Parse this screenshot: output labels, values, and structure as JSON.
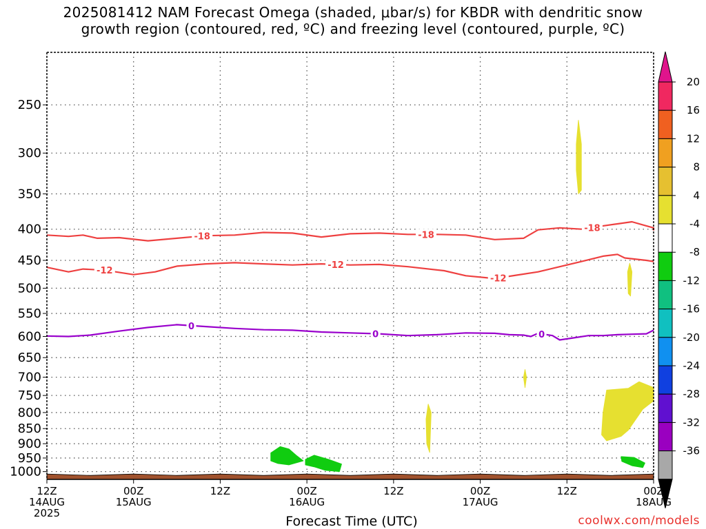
{
  "title": {
    "line1": "2025081412 NAM Forecast Omega (shaded, μbar/s) for KBDR with dendritic snow",
    "line2": "growth region (contoured, red, ºC) and freezing level (contoured, purple, ºC)"
  },
  "xlabel": "Forecast Time (UTC)",
  "credit": "coolwx.com/models",
  "colors": {
    "temp_contour": "#ee4040",
    "freezing_contour": "#9900cc",
    "ground": "#a0522d",
    "grid": "#555555"
  },
  "chart_data": {
    "type": "time-height",
    "y_scale": "log-pressure",
    "ylim": [
      1030,
      205
    ],
    "y_ticks": [
      250,
      300,
      350,
      400,
      450,
      500,
      550,
      600,
      650,
      700,
      750,
      800,
      850,
      900,
      950,
      1000
    ],
    "x_range_hours": [
      0,
      84
    ],
    "x_ticks": [
      {
        "h": 0,
        "label": "12Z",
        "date": "14AUG",
        "year": "2025"
      },
      {
        "h": 12,
        "label": "00Z",
        "date": "15AUG",
        "year": ""
      },
      {
        "h": 24,
        "label": "12Z",
        "date": "",
        "year": ""
      },
      {
        "h": 36,
        "label": "00Z",
        "date": "16AUG",
        "year": ""
      },
      {
        "h": 48,
        "label": "12Z",
        "date": "",
        "year": ""
      },
      {
        "h": 60,
        "label": "00Z",
        "date": "17AUG",
        "year": ""
      },
      {
        "h": 72,
        "label": "12Z",
        "date": "",
        "year": ""
      },
      {
        "h": 84,
        "label": "00Z",
        "date": "18AUG",
        "year": ""
      }
    ],
    "contours": [
      {
        "label": "-18",
        "color": "#ee4040",
        "label_at": [
          21.5,
          52.5,
          75.5
        ],
        "points": [
          [
            0,
            409
          ],
          [
            3,
            411
          ],
          [
            5,
            409
          ],
          [
            7,
            414
          ],
          [
            10,
            413
          ],
          [
            14,
            418
          ],
          [
            18,
            414
          ],
          [
            22,
            410
          ],
          [
            26,
            409
          ],
          [
            30,
            405
          ],
          [
            34,
            406
          ],
          [
            38,
            412
          ],
          [
            42,
            407
          ],
          [
            46,
            406
          ],
          [
            50,
            408
          ],
          [
            54,
            408
          ],
          [
            58,
            409
          ],
          [
            62,
            416
          ],
          [
            66,
            414
          ],
          [
            68,
            401
          ],
          [
            71,
            398
          ],
          [
            74,
            400
          ],
          [
            77,
            395
          ],
          [
            79,
            392
          ],
          [
            81,
            389
          ],
          [
            83,
            395
          ],
          [
            84,
            398
          ],
          [
            84,
            402
          ]
        ]
      },
      {
        "label": "-12",
        "color": "#ee4040",
        "label_at": [
          8,
          40,
          62.5
        ],
        "points": [
          [
            0,
            462
          ],
          [
            3,
            470
          ],
          [
            5,
            465
          ],
          [
            8,
            467
          ],
          [
            12,
            475
          ],
          [
            15,
            470
          ],
          [
            18,
            460
          ],
          [
            22,
            456
          ],
          [
            26,
            454
          ],
          [
            30,
            456
          ],
          [
            34,
            458
          ],
          [
            38,
            456
          ],
          [
            42,
            458
          ],
          [
            46,
            457
          ],
          [
            50,
            461
          ],
          [
            55,
            468
          ],
          [
            58,
            477
          ],
          [
            62,
            482
          ],
          [
            65,
            476
          ],
          [
            68,
            470
          ],
          [
            71,
            461
          ],
          [
            74,
            452
          ],
          [
            77,
            443
          ],
          [
            79,
            440
          ],
          [
            80,
            446
          ],
          [
            83,
            450
          ],
          [
            84,
            452
          ]
        ]
      },
      {
        "label": "0",
        "color": "#9900cc",
        "label_at": [
          20,
          45.5,
          68.5
        ],
        "points": [
          [
            0,
            599
          ],
          [
            3,
            600
          ],
          [
            6,
            597
          ],
          [
            10,
            588
          ],
          [
            14,
            580
          ],
          [
            18,
            574
          ],
          [
            22,
            578
          ],
          [
            26,
            582
          ],
          [
            30,
            585
          ],
          [
            34,
            586
          ],
          [
            38,
            590
          ],
          [
            42,
            592
          ],
          [
            46,
            594
          ],
          [
            50,
            598
          ],
          [
            54,
            596
          ],
          [
            58,
            592
          ],
          [
            62,
            593
          ],
          [
            64,
            596
          ],
          [
            66,
            597
          ],
          [
            67,
            600
          ],
          [
            68,
            593
          ],
          [
            70,
            598
          ],
          [
            71,
            608
          ],
          [
            73,
            603
          ],
          [
            75,
            598
          ],
          [
            77,
            598
          ],
          [
            79,
            596
          ],
          [
            81,
            595
          ],
          [
            83,
            594
          ],
          [
            84,
            586
          ]
        ]
      }
    ],
    "omega_regions": [
      {
        "level": "4 to 8",
        "color": "#e6e030",
        "points": [
          [
            73.6,
            265
          ],
          [
            74.0,
            290
          ],
          [
            74.0,
            345
          ],
          [
            73.6,
            350
          ],
          [
            73.3,
            320
          ],
          [
            73.3,
            290
          ]
        ]
      },
      {
        "level": "4 to 8",
        "color": "#e6e030",
        "points": [
          [
            80.7,
            455
          ],
          [
            81.0,
            470
          ],
          [
            80.8,
            515
          ],
          [
            80.5,
            510
          ],
          [
            80.4,
            470
          ]
        ]
      },
      {
        "level": "4 to 8",
        "color": "#e6e030",
        "points": [
          [
            66.2,
            680
          ],
          [
            66.4,
            700
          ],
          [
            66.2,
            728
          ],
          [
            66.0,
            700
          ]
        ]
      },
      {
        "level": "4 to 8",
        "color": "#e6e030",
        "points": [
          [
            52.8,
            775
          ],
          [
            53.2,
            800
          ],
          [
            53.0,
            930
          ],
          [
            52.6,
            900
          ],
          [
            52.5,
            820
          ]
        ]
      },
      {
        "level": "4 to 8",
        "color": "#e6e030",
        "points": [
          [
            77.5,
            735
          ],
          [
            80.5,
            730
          ],
          [
            82.0,
            712
          ],
          [
            84.0,
            728
          ],
          [
            84.0,
            765
          ],
          [
            82.5,
            790
          ],
          [
            80.5,
            855
          ],
          [
            79.5,
            875
          ],
          [
            77.5,
            890
          ],
          [
            76.8,
            870
          ],
          [
            77.0,
            800
          ]
        ]
      },
      {
        "level": "-4 to -8",
        "color": "#10cc10",
        "points": [
          [
            31.0,
            932
          ],
          [
            32.3,
            910
          ],
          [
            33.5,
            918
          ],
          [
            34.5,
            940
          ],
          [
            35.5,
            960
          ],
          [
            33.5,
            975
          ],
          [
            32.0,
            970
          ],
          [
            31.0,
            960
          ]
        ]
      },
      {
        "level": "-4 to -8",
        "color": "#10cc10",
        "points": [
          [
            35.8,
            955
          ],
          [
            37.0,
            940
          ],
          [
            39.0,
            955
          ],
          [
            40.8,
            972
          ],
          [
            40.5,
            1000
          ],
          [
            38.5,
            995
          ],
          [
            37.0,
            982
          ],
          [
            35.8,
            975
          ]
        ]
      },
      {
        "level": "-4 to -8",
        "color": "#10cc10",
        "points": [
          [
            79.5,
            945
          ],
          [
            81.3,
            948
          ],
          [
            82.8,
            968
          ],
          [
            82.5,
            985
          ],
          [
            81.0,
            978
          ],
          [
            79.6,
            962
          ]
        ]
      }
    ],
    "ground_top_mb": 1012,
    "colorbar": {
      "labels": [
        "20",
        "16",
        "12",
        "8",
        "4",
        "-4",
        "-8",
        "-12",
        "-16",
        "-20",
        "-24",
        "-28",
        "-32",
        "-36"
      ],
      "colors": [
        "#f02860",
        "#f06020",
        "#f0a020",
        "#e6c030",
        "#e6e030",
        "#ffffff",
        "#10cc10",
        "#10c080",
        "#10c0c0",
        "#1090f0",
        "#1040e0",
        "#6010d0",
        "#9a00c0",
        "#a8a8a8"
      ],
      "top_arrow_color": "#e0148c",
      "bottom_arrow_color": "#000000"
    }
  }
}
